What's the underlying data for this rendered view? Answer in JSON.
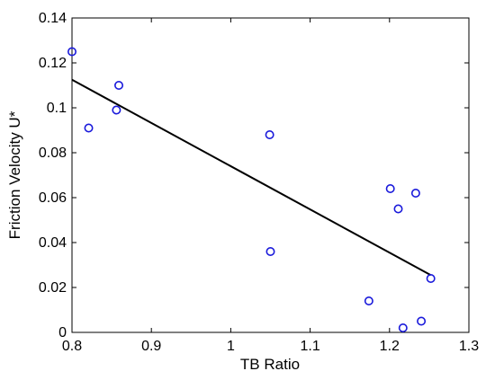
{
  "chart_data": {
    "type": "scatter",
    "title": "",
    "xlabel": "TB Ratio",
    "ylabel": "Friction Velocity U*",
    "xlim": [
      0.8,
      1.3
    ],
    "ylim": [
      0,
      0.14
    ],
    "xticks": [
      0.8,
      0.9,
      1.0,
      1.1,
      1.2,
      1.3
    ],
    "xtick_labels": [
      "0.8",
      "0.9",
      "1",
      "1.1",
      "1.2",
      "1.3"
    ],
    "yticks": [
      0,
      0.02,
      0.04,
      0.06,
      0.08,
      0.1,
      0.12,
      0.14
    ],
    "ytick_labels": [
      "0",
      "0.02",
      "0.04",
      "0.06",
      "0.08",
      "0.1",
      "0.12",
      "0.14"
    ],
    "grid": false,
    "series": [
      {
        "marker": "open-circle",
        "color": "#1a1adb",
        "points": [
          {
            "x": 0.8,
            "y": 0.125
          },
          {
            "x": 0.821,
            "y": 0.091
          },
          {
            "x": 0.856,
            "y": 0.099
          },
          {
            "x": 0.859,
            "y": 0.11
          },
          {
            "x": 1.049,
            "y": 0.088
          },
          {
            "x": 1.05,
            "y": 0.036
          },
          {
            "x": 1.174,
            "y": 0.014
          },
          {
            "x": 1.201,
            "y": 0.064
          },
          {
            "x": 1.211,
            "y": 0.055
          },
          {
            "x": 1.217,
            "y": 0.002
          },
          {
            "x": 1.233,
            "y": 0.062
          },
          {
            "x": 1.24,
            "y": 0.005
          },
          {
            "x": 1.252,
            "y": 0.024
          }
        ]
      }
    ],
    "fit_line": {
      "color": "#000000",
      "points": [
        {
          "x": 0.8,
          "y": 0.1125
        },
        {
          "x": 1.252,
          "y": 0.0255
        }
      ]
    }
  }
}
